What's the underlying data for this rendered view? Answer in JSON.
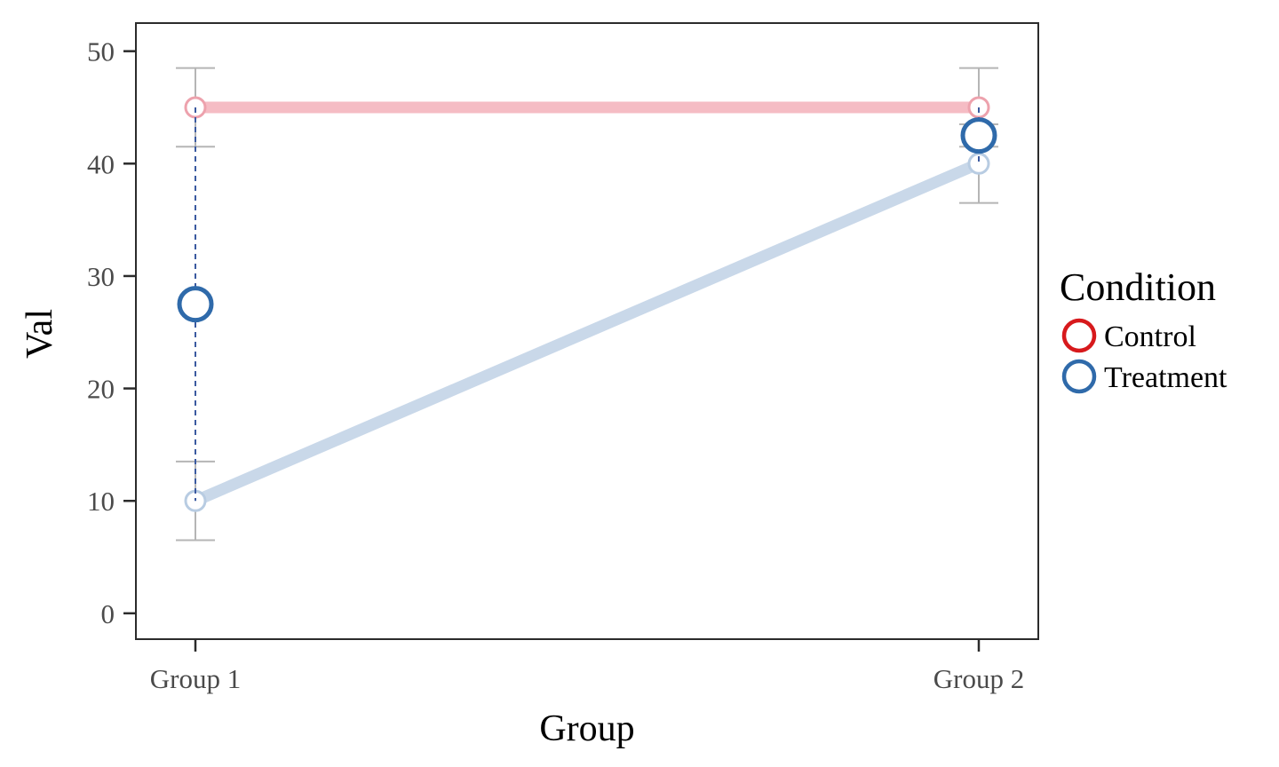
{
  "chart_data": {
    "type": "line",
    "xlabel": "Group",
    "ylabel": "Val",
    "categories": [
      "Group 1",
      "Group 2"
    ],
    "ylim": [
      -2.3,
      52.5
    ],
    "yticks": [
      0,
      10,
      20,
      30,
      40,
      50
    ],
    "grid": false,
    "legend": {
      "title": "Condition",
      "placement": "right",
      "entries": [
        {
          "name": "Control",
          "color": "#d7191c"
        },
        {
          "name": "Treatment",
          "color": "#2f6aaa"
        }
      ]
    },
    "series": [
      {
        "name": "Control",
        "color": "#d7191c",
        "line_color": "#f5bcc4",
        "point_color": "#eda2ad",
        "values": [
          45,
          45
        ],
        "error": [
          [
            41.5,
            48.5
          ],
          [
            41.5,
            48.5
          ]
        ]
      },
      {
        "name": "Treatment",
        "color": "#2f6aaa",
        "line_color": "#c9d8e9",
        "point_color": "#b8cce2",
        "values": [
          10,
          40
        ],
        "error": [
          [
            6.5,
            13.5
          ],
          [
            36.5,
            43.5
          ]
        ]
      }
    ],
    "means": {
      "name": "Treatment",
      "color": "#2f6aaa",
      "dash_color": "#3b5aa0",
      "values": [
        27.5,
        42.5
      ]
    }
  }
}
